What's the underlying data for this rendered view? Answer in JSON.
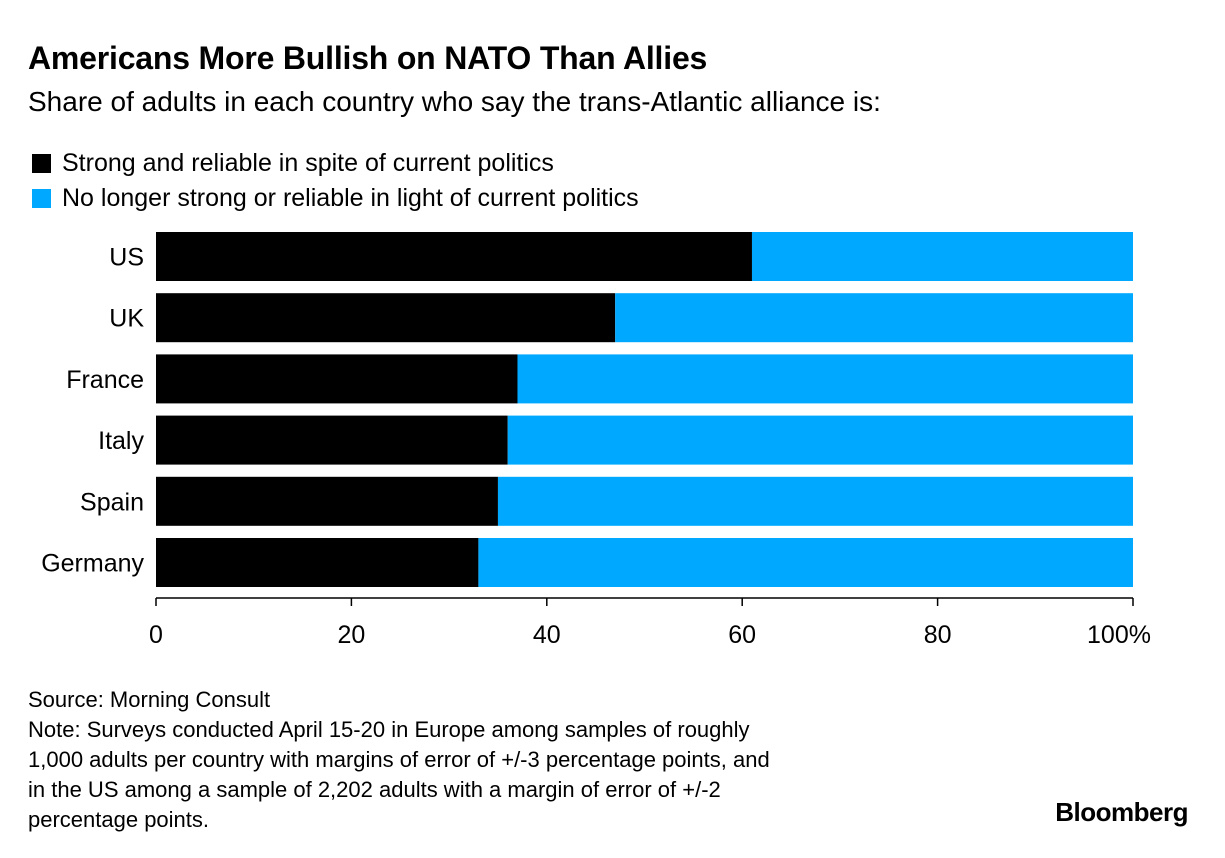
{
  "header": {
    "title": "Americans More Bullish on NATO Than Allies",
    "subtitle": "Share of adults in each country who say the trans-Atlantic alliance is:"
  },
  "colors": {
    "strong": "#000000",
    "not_strong": "#00a9ff"
  },
  "chart_data": {
    "type": "bar",
    "orientation": "horizontal",
    "stacked": true,
    "categories": [
      "US",
      "UK",
      "France",
      "Italy",
      "Spain",
      "Germany"
    ],
    "series": [
      {
        "name": "Strong and reliable in spite of current politics",
        "values": [
          61,
          47,
          37,
          36,
          35,
          33
        ]
      },
      {
        "name": "No longer strong or reliable in light of current politics",
        "values": [
          39,
          53,
          63,
          64,
          65,
          67
        ]
      }
    ],
    "xlim": [
      0,
      100
    ],
    "xticks": [
      0,
      20,
      40,
      60,
      80,
      100
    ],
    "xtick_labels": [
      "0",
      "20",
      "40",
      "60",
      "80",
      "100%"
    ],
    "legend_position": "top-left",
    "grid": false
  },
  "footer": {
    "source": "Source: Morning Consult",
    "note_lines": [
      "Note: Surveys conducted April 15-20 in Europe among samples of roughly",
      "1,000 adults per country with margins of error of +/-3 percentage points, and",
      "in the US among a sample of 2,202 adults with a margin of error of +/-2",
      "percentage points."
    ],
    "brand": "Bloomberg"
  }
}
